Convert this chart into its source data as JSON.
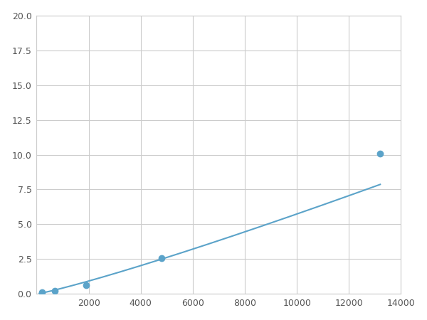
{
  "x": [
    200,
    700,
    1900,
    4800,
    13200
  ],
  "y": [
    0.1,
    0.2,
    0.65,
    2.55,
    10.1
  ],
  "line_color": "#5ba3c9",
  "marker_color": "#5ba3c9",
  "marker_size": 6,
  "xlim": [
    0,
    14000
  ],
  "ylim": [
    0,
    20.0
  ],
  "xticks": [
    0,
    2000,
    4000,
    6000,
    8000,
    10000,
    12000,
    14000
  ],
  "yticks": [
    0.0,
    2.5,
    5.0,
    7.5,
    10.0,
    12.5,
    15.0,
    17.5,
    20.0
  ],
  "grid": true,
  "background_color": "#ffffff",
  "figsize": [
    6.0,
    4.5
  ],
  "dpi": 100
}
